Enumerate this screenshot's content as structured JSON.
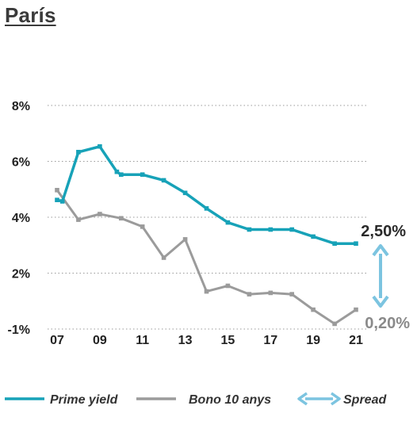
{
  "title": "París",
  "colors": {
    "prime": "#17a2b8",
    "bono": "#9b9b9b",
    "spread": "#7cc4e0",
    "grid": "#9a9a9a",
    "text": "#222222",
    "annot_high": "#2a2a2a",
    "annot_low": "#8a8a8a"
  },
  "annotations": {
    "high": "2,50%",
    "low": "0,20%"
  },
  "legend": [
    {
      "label": "Prime yield",
      "style": "line",
      "color_key": "prime"
    },
    {
      "label": "Bono 10 anys",
      "style": "line",
      "color_key": "bono"
    },
    {
      "label": "Spread",
      "style": "double-arrow",
      "color_key": "spread"
    }
  ],
  "chart_data": {
    "type": "line",
    "title": "París",
    "xlabel": "",
    "ylabel": "",
    "x_ticks": [
      "07",
      "09",
      "11",
      "13",
      "15",
      "17",
      "19",
      "21"
    ],
    "y_ticks": [
      "8%",
      "6%",
      "4%",
      "2%",
      "-1%"
    ],
    "grid": true,
    "legend_position": "bottom",
    "series": [
      {
        "name": "Prime yield",
        "color_key": "prime",
        "points": [
          {
            "x": 2007.0,
            "y": 4.6
          },
          {
            "x": 2007.25,
            "y": 4.55
          },
          {
            "x": 2008.0,
            "y": 6.3
          },
          {
            "x": 2009.0,
            "y": 6.5
          },
          {
            "x": 2009.8,
            "y": 5.6
          },
          {
            "x": 2010.0,
            "y": 5.5
          },
          {
            "x": 2011.0,
            "y": 5.5
          },
          {
            "x": 2012.0,
            "y": 5.3
          },
          {
            "x": 2013.0,
            "y": 4.85
          },
          {
            "x": 2014.0,
            "y": 4.3
          },
          {
            "x": 2015.0,
            "y": 3.8
          },
          {
            "x": 2016.0,
            "y": 3.55
          },
          {
            "x": 2017.0,
            "y": 3.55
          },
          {
            "x": 2018.0,
            "y": 3.55
          },
          {
            "x": 2019.0,
            "y": 3.3
          },
          {
            "x": 2020.0,
            "y": 3.05
          },
          {
            "x": 2021.0,
            "y": 3.05
          }
        ]
      },
      {
        "name": "Bono 10 anys",
        "color_key": "bono",
        "points": [
          {
            "x": 2007.0,
            "y": 4.95
          },
          {
            "x": 2008.0,
            "y": 3.9
          },
          {
            "x": 2009.0,
            "y": 4.1
          },
          {
            "x": 2010.0,
            "y": 3.95
          },
          {
            "x": 2011.0,
            "y": 3.65
          },
          {
            "x": 2012.0,
            "y": 2.55
          },
          {
            "x": 2013.0,
            "y": 3.2
          },
          {
            "x": 2014.0,
            "y": 1.35
          },
          {
            "x": 2015.0,
            "y": 1.55
          },
          {
            "x": 2016.0,
            "y": 1.25
          },
          {
            "x": 2017.0,
            "y": 1.3
          },
          {
            "x": 2018.0,
            "y": 1.25
          },
          {
            "x": 2019.0,
            "y": 0.7
          },
          {
            "x": 2020.0,
            "y": 0.2
          },
          {
            "x": 2021.0,
            "y": 0.7
          }
        ]
      }
    ],
    "spread": {
      "label": "Spread",
      "from_value": "2,50%",
      "to_value": "0,20%"
    }
  }
}
